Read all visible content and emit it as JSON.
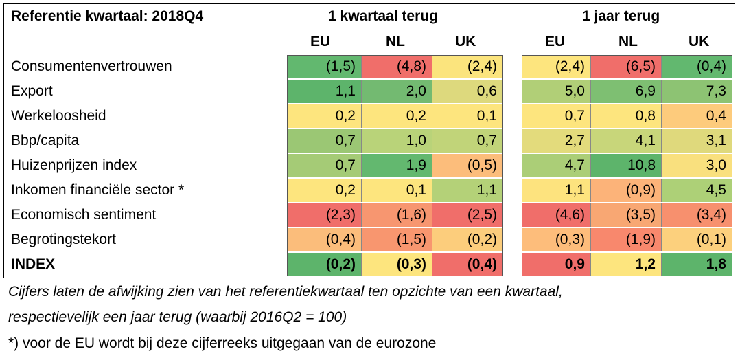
{
  "header": {
    "title": "Referentie kwartaal: 2018Q4",
    "group1": "1 kwartaal terug",
    "group2": "1 jaar terug",
    "cols": [
      "EU",
      "NL",
      "UK",
      "EU",
      "NL",
      "UK"
    ]
  },
  "rows": [
    {
      "label": "Consumentenvertrouwen",
      "values": [
        "(1,5)",
        "(4,8)",
        "(2,4)",
        "(2,4)",
        "(6,5)",
        "(0,4)"
      ],
      "colors": [
        "#62b86f",
        "#f06e6a",
        "#fbe47d",
        "#fde57e",
        "#f06e6a",
        "#62b86f"
      ]
    },
    {
      "label": "Export",
      "values": [
        "1,1",
        "2,0",
        "0,6",
        "5,0",
        "6,9",
        "7,3"
      ],
      "colors": [
        "#5db46b",
        "#73ba71",
        "#ddd97d",
        "#b1cf77",
        "#7ebf72",
        "#8dc373"
      ]
    },
    {
      "label": "Werkeloosheid",
      "values": [
        "0,2",
        "0,2",
        "0,1",
        "0,7",
        "0,8",
        "0,4"
      ],
      "colors": [
        "#fde57e",
        "#fde57e",
        "#fde57e",
        "#fde57e",
        "#fde57e",
        "#fdcb7c"
      ]
    },
    {
      "label": "Bbp/capita",
      "values": [
        "0,7",
        "1,0",
        "0,7",
        "2,7",
        "4,1",
        "3,1"
      ],
      "colors": [
        "#9bc774",
        "#b9d379",
        "#c1d479",
        "#e3db7c",
        "#c8d67a",
        "#dfd97c"
      ]
    },
    {
      "label": "Huizenprijzen index",
      "values": [
        "0,7",
        "1,9",
        "(0,5)",
        "4,7",
        "10,8",
        "3,0"
      ],
      "colors": [
        "#a5cb76",
        "#63b86f",
        "#fcbd7b",
        "#abce77",
        "#5db46b",
        "#f9e07e"
      ]
    },
    {
      "label": "Inkomen financiële sector *",
      "values": [
        "0,2",
        "0,1",
        "1,1",
        "1,1",
        "(0,9)",
        "4,5"
      ],
      "colors": [
        "#fde57e",
        "#fde57e",
        "#b4d178",
        "#fde37e",
        "#fcb379",
        "#add077"
      ]
    },
    {
      "label": "Economisch sentiment",
      "values": [
        "(2,3)",
        "(1,6)",
        "(2,5)",
        "(4,6)",
        "(3,5)",
        "(3,4)"
      ],
      "colors": [
        "#f06e6a",
        "#f79670",
        "#f06e6a",
        "#f06e6a",
        "#f8a773",
        "#f7906e"
      ]
    },
    {
      "label": "Begrotingstekort",
      "values": [
        "(0,4)",
        "(1,5)",
        "(0,2)",
        "(0,3)",
        "(1,9)",
        "(0,1)"
      ],
      "colors": [
        "#fbbd7b",
        "#f8966f",
        "#fccd7c",
        "#fdbd7b",
        "#f8886d",
        "#fcd07d"
      ]
    },
    {
      "label": "INDEX",
      "bold": true,
      "values": [
        "(0,2)",
        "(0,3)",
        "(0,4)",
        "0,9",
        "1,2",
        "1,8"
      ],
      "colors": [
        "#5db46b",
        "#fde57e",
        "#f06e6a",
        "#f06e6a",
        "#fde57e",
        "#5db46b"
      ]
    }
  ],
  "notes": {
    "line1": "Cijfers laten de afwijking zien van het referentiekwartaal ten opzichte van een kwartaal,",
    "line2": "respectievelijk een jaar terug (waarbij 2016Q2 = 100)",
    "footnote": "*) voor de EU wordt bij deze cijferreeks uitgegaan van de eurozone"
  }
}
